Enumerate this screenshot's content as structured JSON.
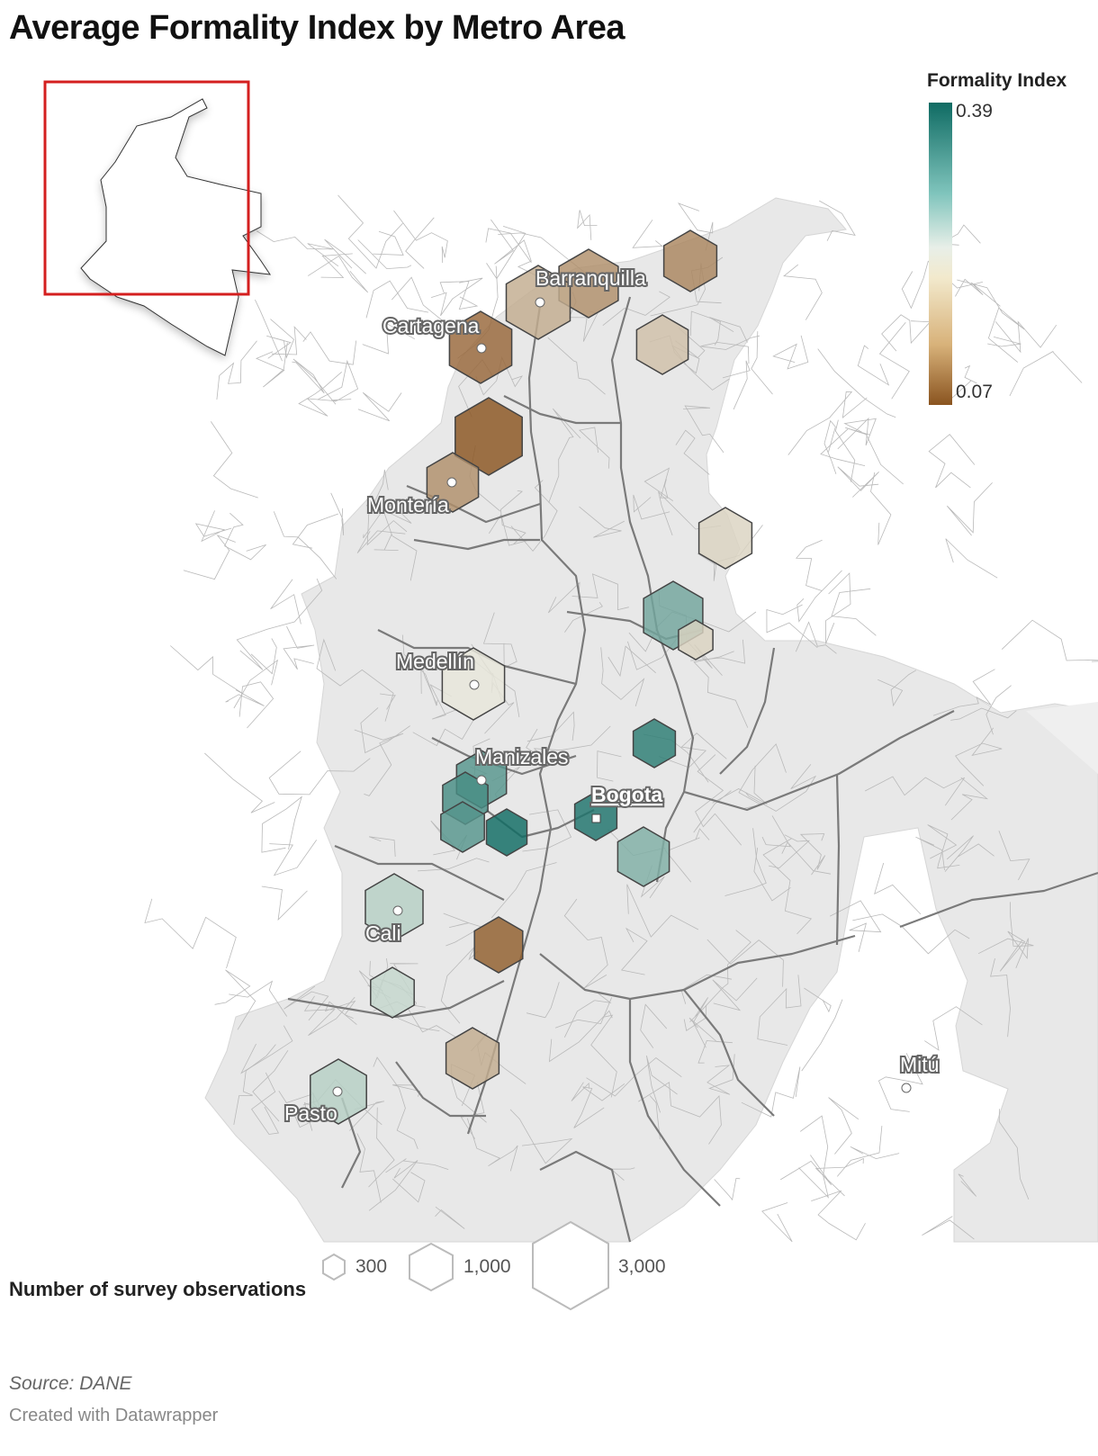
{
  "title": "Average Formality Index by Metro Area",
  "legend": {
    "title": "Formality Index",
    "max_label": "0.39",
    "min_label": "0.07",
    "colors": {
      "high": "#0f6b63",
      "mid": "#eef0e6",
      "low": "#8a5420"
    }
  },
  "size_legend": {
    "title": "Number of survey observations",
    "labels": [
      "300",
      "1,000",
      "3,000"
    ]
  },
  "source": "Source: DANE",
  "credit": "Created with Datawrapper",
  "cities": {
    "barranquilla": "Barranquilla",
    "cartagena": "Cartagena",
    "monteria": "Montería",
    "medellin": "Medellín",
    "manizales": "Manizales",
    "bogota": "Bogota",
    "cali": "Cali",
    "pasto": "Pasto",
    "mitu": "Mitú"
  },
  "hexes": [
    {
      "id": "barranquilla-east",
      "value": 0.13
    },
    {
      "id": "barranquilla",
      "value": 0.16
    },
    {
      "id": "santa-marta",
      "value": 0.12
    },
    {
      "id": "cartagena",
      "value": 0.09
    },
    {
      "id": "valledupar",
      "value": 0.18
    },
    {
      "id": "sincelejo",
      "value": 0.07
    },
    {
      "id": "monteria",
      "value": 0.13
    },
    {
      "id": "cucuta",
      "value": 0.2
    },
    {
      "id": "bucaramanga",
      "value": 0.32
    },
    {
      "id": "bucaramanga-2",
      "value": 0.2
    },
    {
      "id": "medellin",
      "value": 0.22
    },
    {
      "id": "tunja",
      "value": 0.37
    },
    {
      "id": "manizales",
      "value": 0.34
    },
    {
      "id": "pereira",
      "value": 0.35
    },
    {
      "id": "armenia",
      "value": 0.34
    },
    {
      "id": "ibague",
      "value": 0.39
    },
    {
      "id": "bogota",
      "value": 0.38
    },
    {
      "id": "villavicencio",
      "value": 0.31
    },
    {
      "id": "cali",
      "value": 0.27
    },
    {
      "id": "neiva",
      "value": 0.08
    },
    {
      "id": "popayan",
      "value": 0.26
    },
    {
      "id": "florencia",
      "value": 0.16
    },
    {
      "id": "pasto",
      "value": 0.27
    }
  ]
}
